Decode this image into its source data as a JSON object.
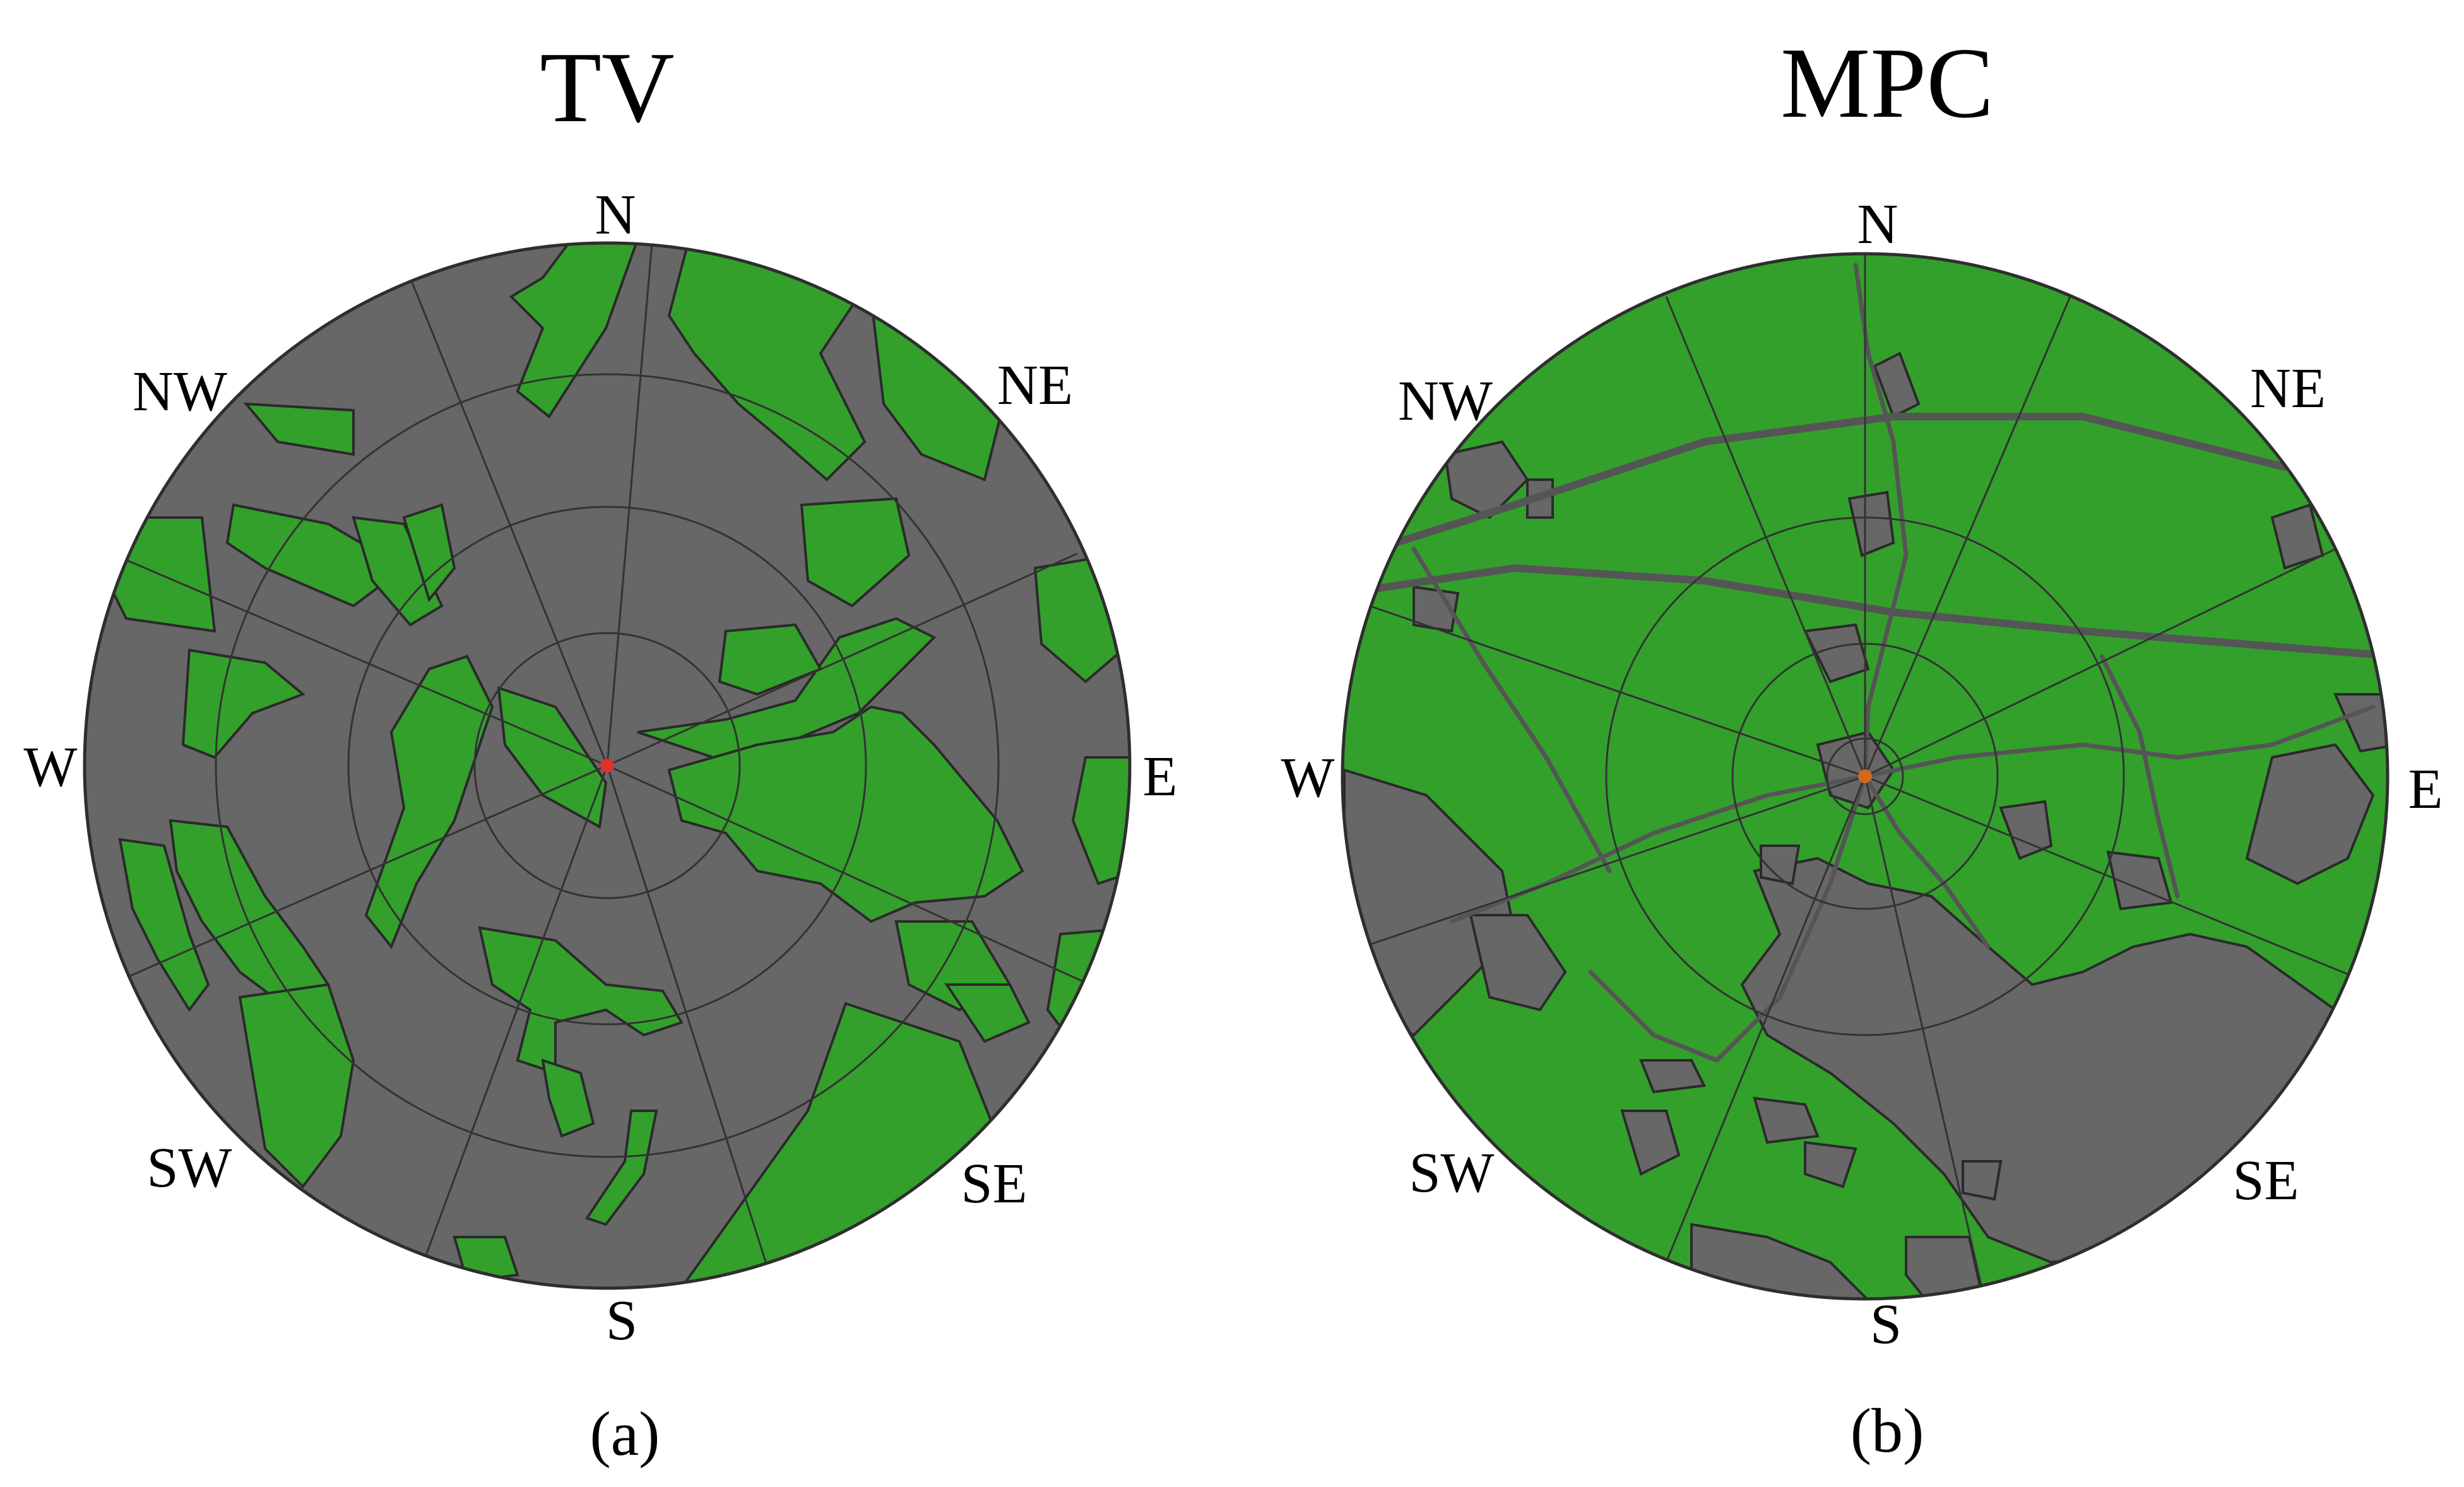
{
  "panels": [
    {
      "id": "a",
      "title": "TV",
      "caption": "(a)",
      "dominant_cover": "gray",
      "center_marker_color": "#e0302a",
      "directions": [
        "N",
        "NE",
        "E",
        "SE",
        "S",
        "SW",
        "W",
        "NW"
      ]
    },
    {
      "id": "b",
      "title": "MPC",
      "caption": "(b)",
      "dominant_cover": "green",
      "center_marker_color": "#d2691e",
      "directions": [
        "N",
        "NE",
        "E",
        "SE",
        "S",
        "SW",
        "W",
        "NW"
      ]
    }
  ],
  "colors": {
    "vegetation": "#33a02c",
    "non_vegetation": "#676767",
    "boundary": "#2e2e2e"
  }
}
